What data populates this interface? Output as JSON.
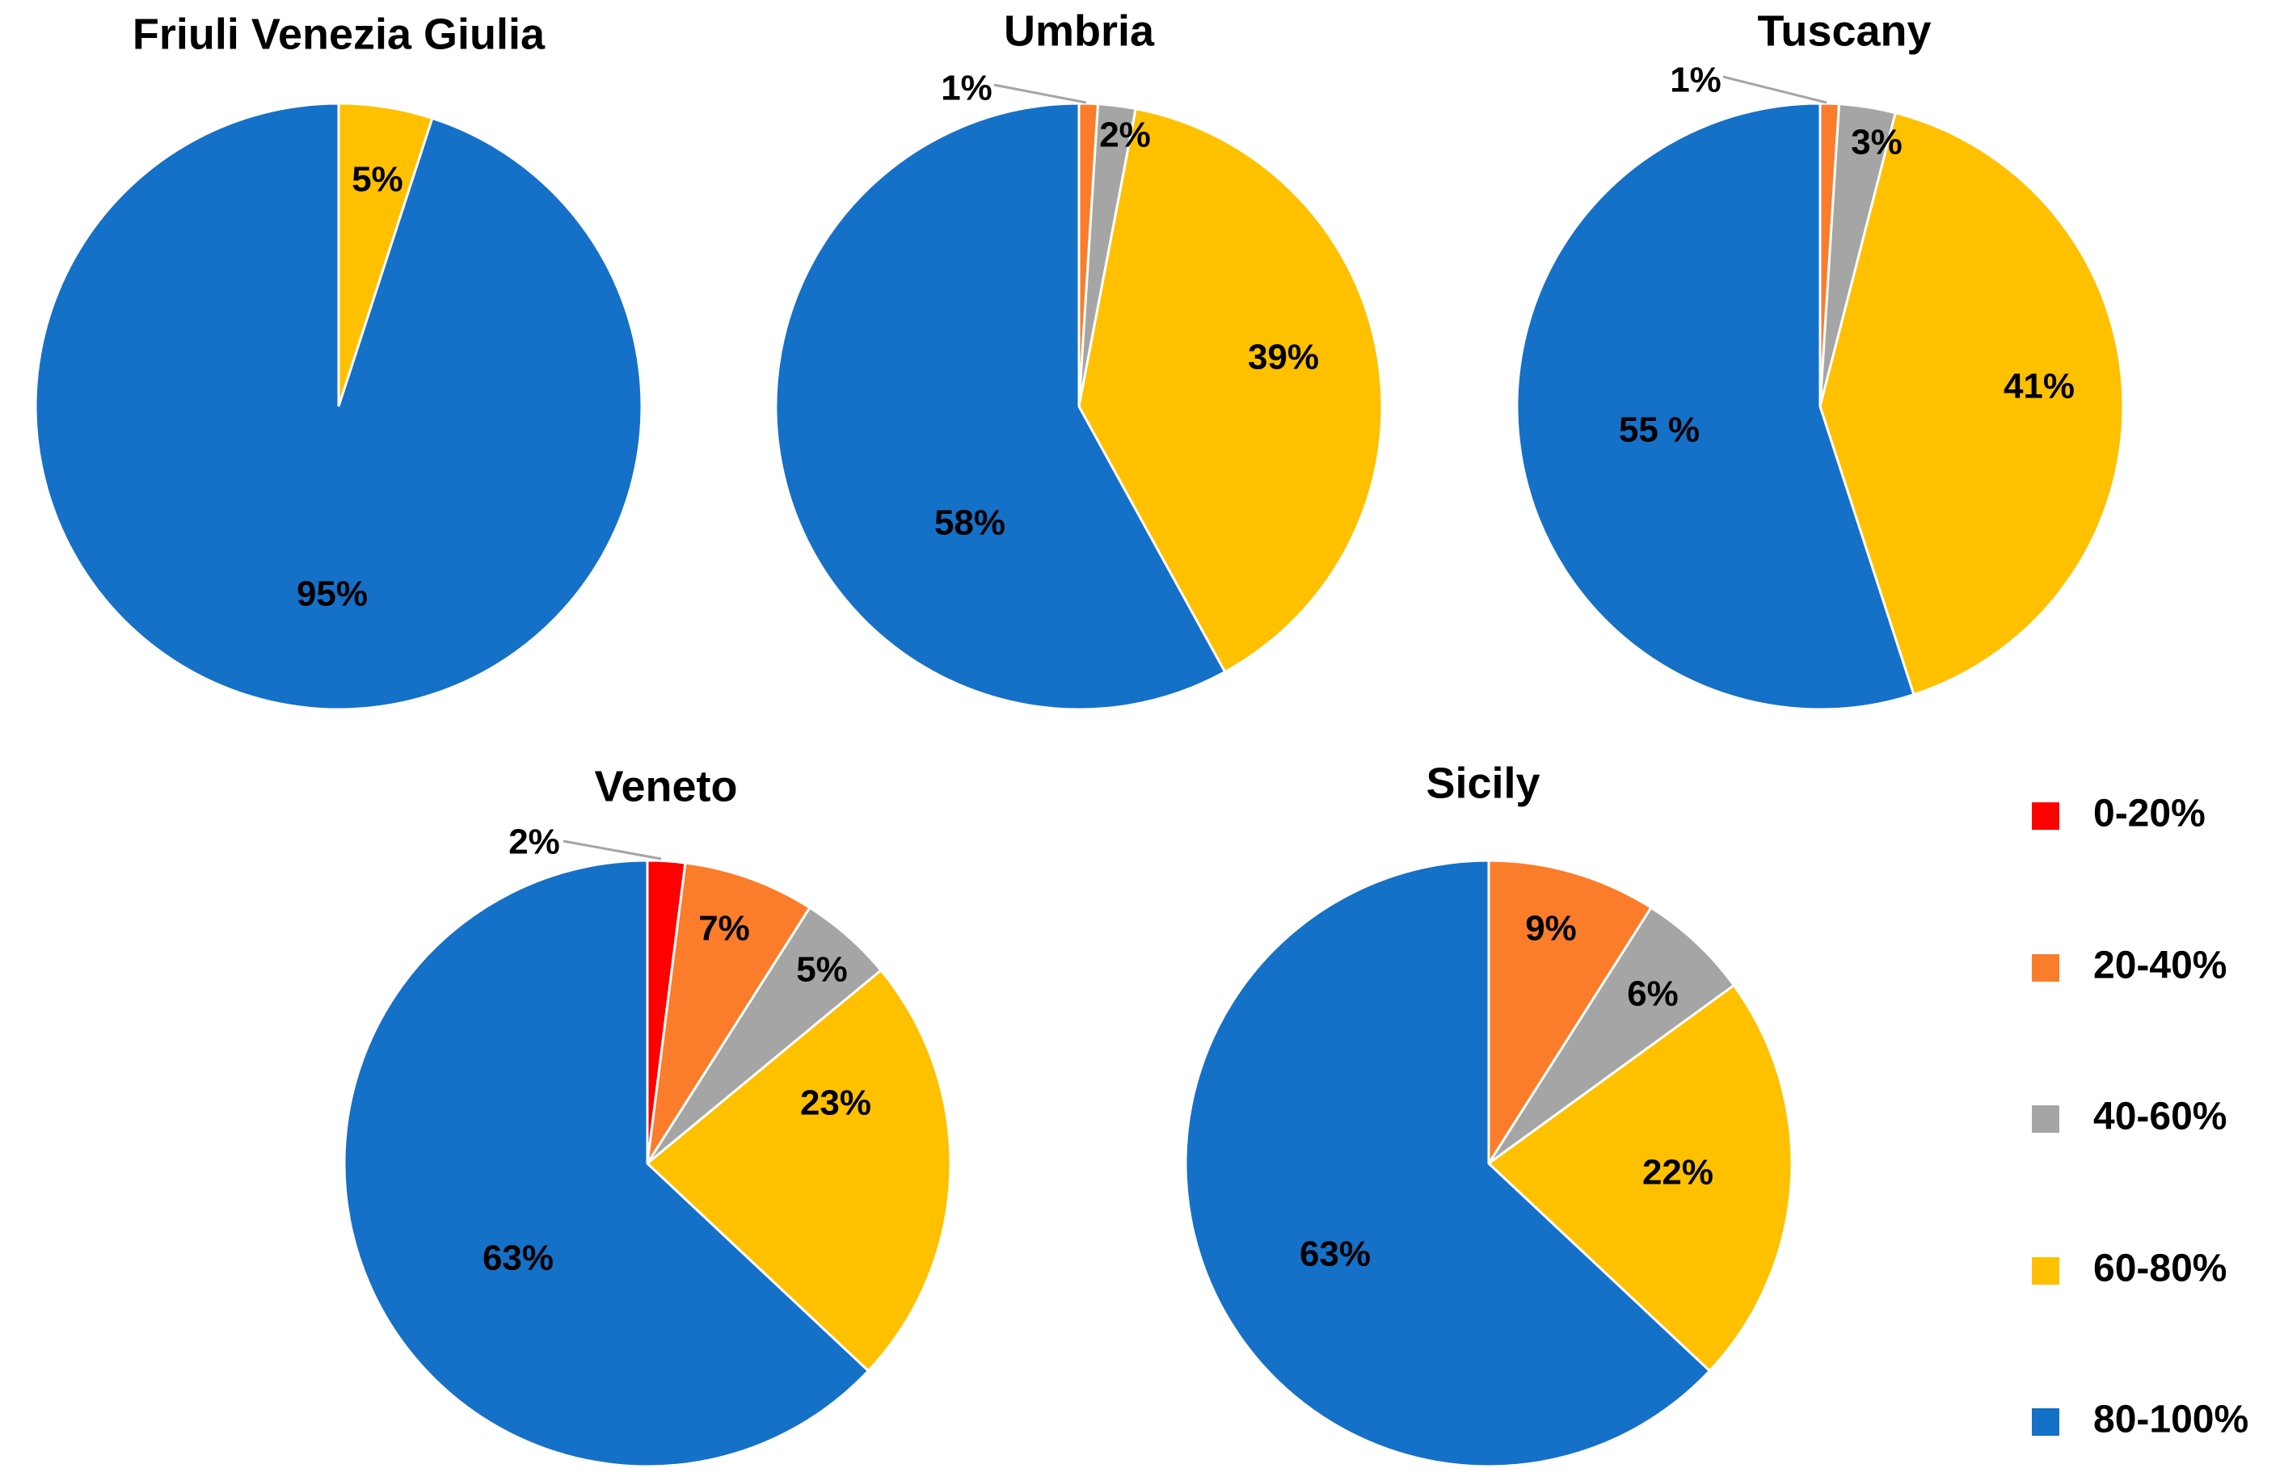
{
  "legend": [
    {
      "label": "0-20%",
      "color": "#ff0000"
    },
    {
      "label": "20-40%",
      "color": "#fb7d2b"
    },
    {
      "label": "40-60%",
      "color": "#a5a5a5"
    },
    {
      "label": "60-80%",
      "color": "#ffc000"
    },
    {
      "label": "80-100%",
      "color": "#1570c8"
    }
  ],
  "chart_data": [
    {
      "type": "pie",
      "title": "Friuli Venezia Giulia",
      "categories": [
        "0-20%",
        "20-40%",
        "40-60%",
        "60-80%",
        "80-100%"
      ],
      "values": [
        0,
        0,
        0,
        5,
        95
      ],
      "labels": [
        "",
        "",
        "",
        "5%",
        "95%"
      ]
    },
    {
      "type": "pie",
      "title": "Umbria",
      "categories": [
        "0-20%",
        "20-40%",
        "40-60%",
        "60-80%",
        "80-100%"
      ],
      "values": [
        0,
        1,
        2,
        39,
        58
      ],
      "labels": [
        "",
        "1%",
        "2%",
        "39%",
        "58%"
      ]
    },
    {
      "type": "pie",
      "title": "Tuscany",
      "categories": [
        "0-20%",
        "20-40%",
        "40-60%",
        "60-80%",
        "80-100%"
      ],
      "values": [
        0,
        1,
        3,
        41,
        55
      ],
      "labels": [
        "",
        "1%",
        "3%",
        "41%",
        "55 %"
      ]
    },
    {
      "type": "pie",
      "title": "Veneto",
      "categories": [
        "0-20%",
        "20-40%",
        "40-60%",
        "60-80%",
        "80-100%"
      ],
      "values": [
        2,
        7,
        5,
        23,
        63
      ],
      "labels": [
        "2%",
        "7%",
        "5%",
        "23%",
        "63%"
      ]
    },
    {
      "type": "pie",
      "title": "Sicily",
      "categories": [
        "0-20%",
        "20-40%",
        "40-60%",
        "60-80%",
        "80-100%"
      ],
      "values": [
        0,
        9,
        6,
        22,
        63
      ],
      "labels": [
        "",
        "9%",
        "6%",
        "22%",
        "63%"
      ]
    }
  ]
}
